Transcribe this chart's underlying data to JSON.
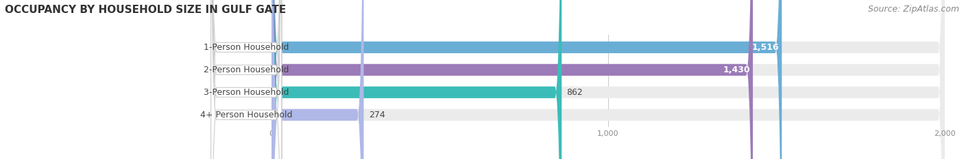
{
  "title": "OCCUPANCY BY HOUSEHOLD SIZE IN GULF GATE",
  "source": "Source: ZipAtlas.com",
  "categories": [
    "1-Person Household",
    "2-Person Household",
    "3-Person Household",
    "4+ Person Household"
  ],
  "values": [
    1516,
    1430,
    862,
    274
  ],
  "bar_colors": [
    "#6aaed6",
    "#9b7bb8",
    "#3bbcb8",
    "#b0b8e8"
  ],
  "xlim_data": 2000,
  "xticks": [
    0,
    1000,
    2000
  ],
  "background_color": "#ffffff",
  "bar_background_color": "#ebebeb",
  "title_fontsize": 11,
  "source_fontsize": 9,
  "label_fontsize": 9,
  "value_fontsize": 9,
  "bar_height": 0.52,
  "figsize": [
    14.06,
    2.33
  ],
  "dpi": 100,
  "label_box_color": "#ffffff",
  "label_text_color": "#444444",
  "value_color_inside": "#ffffff",
  "value_color_outside": "#444444"
}
